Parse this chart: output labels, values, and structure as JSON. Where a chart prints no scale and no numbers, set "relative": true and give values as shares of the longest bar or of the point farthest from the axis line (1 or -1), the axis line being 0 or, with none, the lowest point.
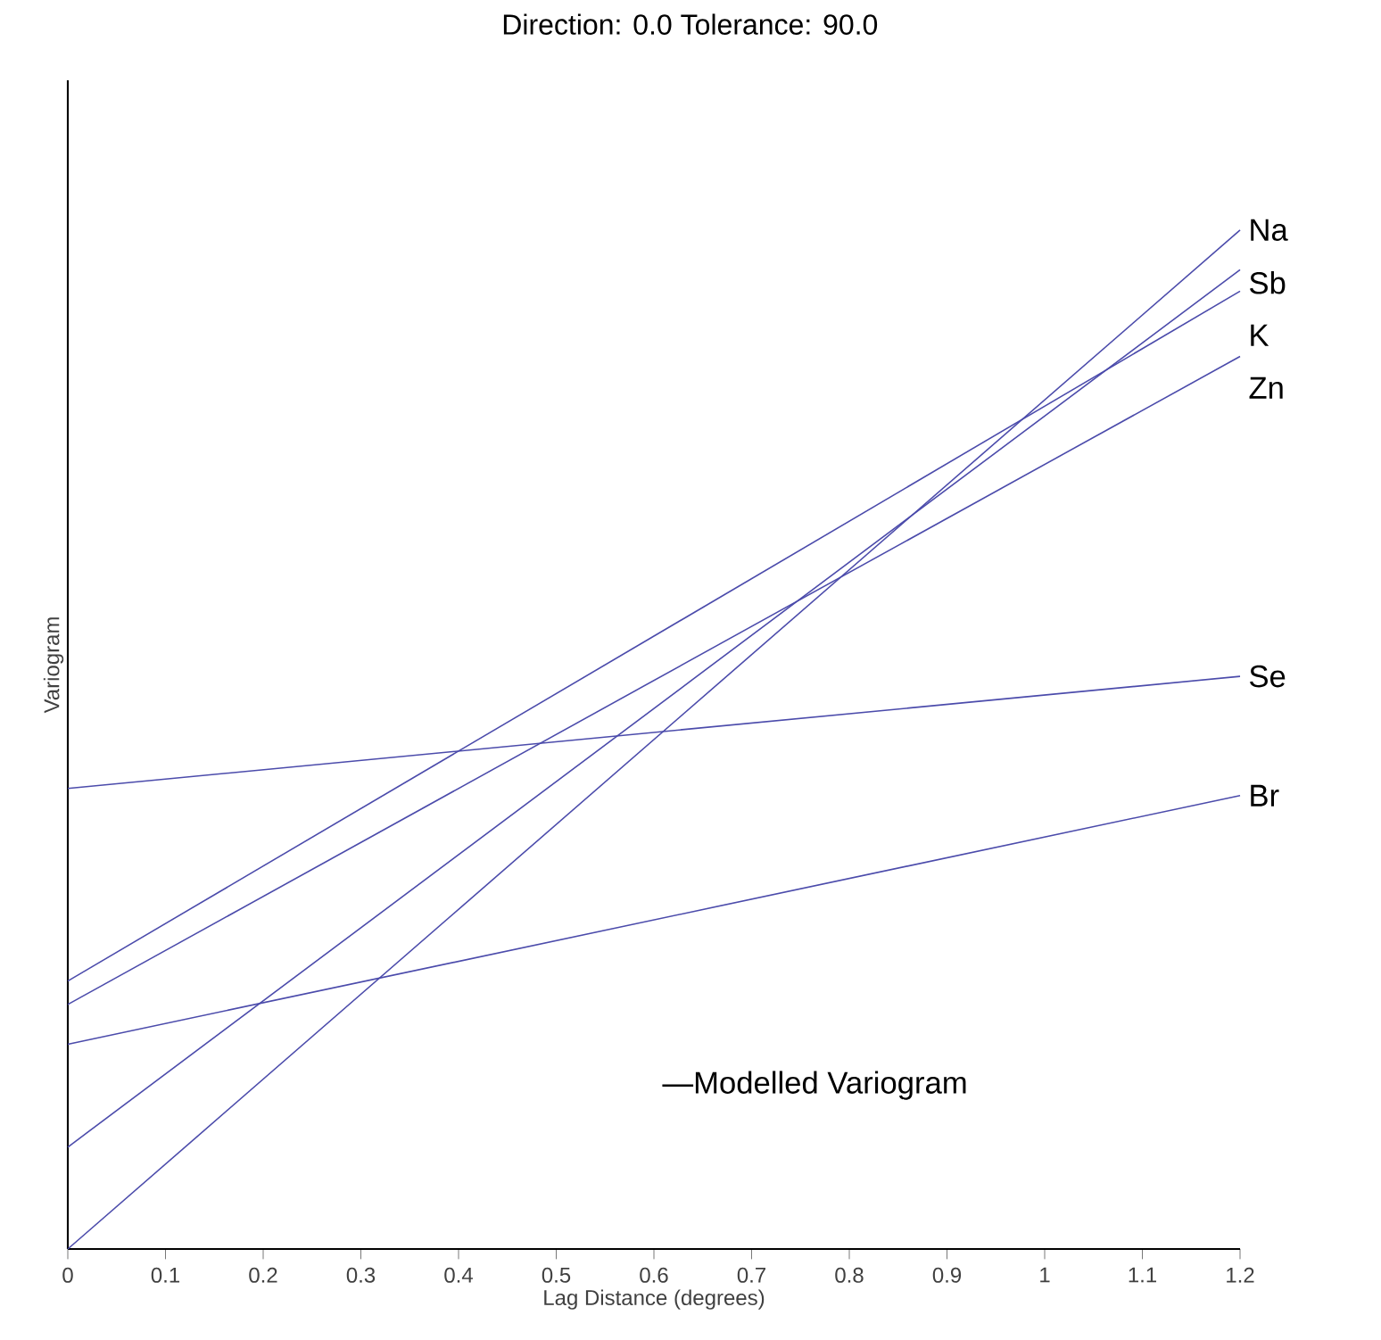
{
  "chart_data": {
    "type": "line",
    "title": "Direction: 0.0   Tolerance: 90.0",
    "xlabel": "Lag Distance (degrees)",
    "ylabel": "Variogram",
    "relative": true,
    "xlim": [
      0,
      1.2
    ],
    "xticks": [
      0,
      0.1,
      0.2,
      0.3,
      0.4,
      0.5,
      0.6,
      0.7,
      0.8,
      0.9,
      1,
      1.1,
      1.2
    ],
    "grid": false,
    "x": [
      0,
      1.2
    ],
    "marker": "none",
    "line_style": "solid",
    "annotations": [
      "—Modelled Variogram"
    ],
    "series": [
      {
        "name": "Na",
        "color": "#4b4bab",
        "values": [
          0,
          1
        ]
      },
      {
        "name": "Sb",
        "color": "#4b4bab",
        "values": [
          0.1,
          0.961
        ]
      },
      {
        "name": "K",
        "color": "#4b4bab",
        "values": [
          0.263,
          0.94
        ]
      },
      {
        "name": "Zn",
        "color": "#4b4bab",
        "values": [
          0.24,
          0.876
        ]
      },
      {
        "name": "Se",
        "color": "#4b4bab",
        "values": [
          0.452,
          0.562
        ]
      },
      {
        "name": "Br",
        "color": "#4b4bab",
        "values": [
          0.201,
          0.445
        ]
      }
    ]
  }
}
